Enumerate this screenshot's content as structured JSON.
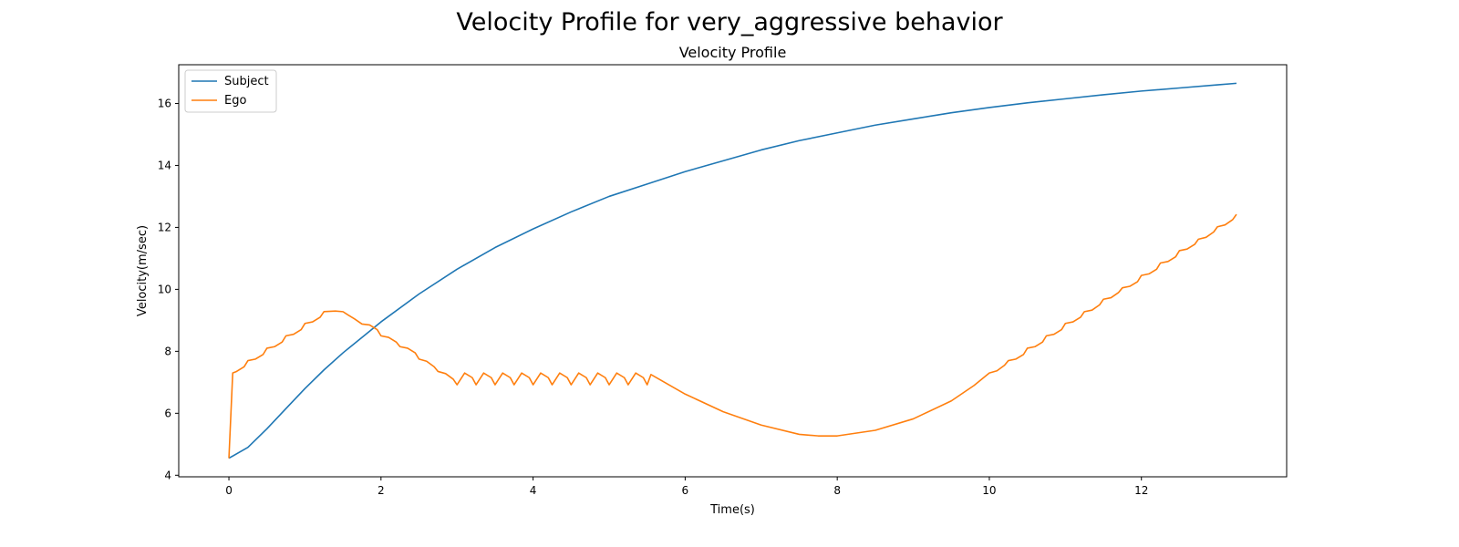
{
  "chart_data": {
    "type": "line",
    "suptitle": "Velocity Profile for very_aggressive behavior",
    "title": "Velocity Profile",
    "xlabel": "Time(s)",
    "ylabel": "Velocity(m/sec)",
    "xlim": [
      -0.66,
      13.91
    ],
    "ylim": [
      3.95,
      17.25
    ],
    "xticks": [
      0,
      2,
      4,
      6,
      8,
      10,
      12
    ],
    "yticks": [
      4,
      6,
      8,
      10,
      12,
      14,
      16
    ],
    "grid": false,
    "legend_position": "upper-left",
    "series": [
      {
        "name": "Subject",
        "color": "#1f77b4",
        "x": [
          0,
          0.25,
          0.5,
          0.75,
          1,
          1.25,
          1.5,
          1.75,
          2,
          2.5,
          3,
          3.5,
          4,
          4.5,
          5,
          5.5,
          6,
          6.5,
          7,
          7.5,
          8,
          8.5,
          9,
          9.5,
          10,
          10.5,
          11,
          11.5,
          12,
          12.5,
          13,
          13.25
        ],
        "y": [
          4.55,
          4.9,
          5.5,
          6.15,
          6.8,
          7.4,
          7.95,
          8.45,
          8.95,
          9.85,
          10.65,
          11.35,
          11.95,
          12.5,
          13.0,
          13.4,
          13.8,
          14.15,
          14.5,
          14.8,
          15.05,
          15.3,
          15.5,
          15.7,
          15.87,
          16.02,
          16.15,
          16.28,
          16.4,
          16.5,
          16.6,
          16.65
        ]
      },
      {
        "name": "Ego",
        "color": "#ff7f0e",
        "x": [
          0,
          0.05,
          0.1,
          0.2,
          0.25,
          0.35,
          0.45,
          0.5,
          0.6,
          0.7,
          0.75,
          0.85,
          0.95,
          1.0,
          1.1,
          1.2,
          1.25,
          1.4,
          1.5,
          1.55,
          1.65,
          1.75,
          1.85,
          1.95,
          2.0,
          2.1,
          2.2,
          2.25,
          2.35,
          2.45,
          2.5,
          2.6,
          2.7,
          2.75,
          2.85,
          2.95,
          3.0,
          3.1,
          3.2,
          3.25,
          3.35,
          3.45,
          3.5,
          3.6,
          3.7,
          3.75,
          3.85,
          3.95,
          4.0,
          4.1,
          4.2,
          4.25,
          4.35,
          4.45,
          4.5,
          4.6,
          4.7,
          4.75,
          4.85,
          4.95,
          5.0,
          5.1,
          5.2,
          5.25,
          5.35,
          5.45,
          5.5,
          5.55,
          6.0,
          6.5,
          7.0,
          7.5,
          7.75,
          8.0,
          8.5,
          9.0,
          9.5,
          9.8,
          10.0,
          10.1,
          10.2,
          10.25,
          10.35,
          10.45,
          10.5,
          10.6,
          10.7,
          10.75,
          10.85,
          10.95,
          11.0,
          11.1,
          11.2,
          11.25,
          11.35,
          11.45,
          11.5,
          11.6,
          11.7,
          11.75,
          11.85,
          11.95,
          12.0,
          12.1,
          12.2,
          12.25,
          12.35,
          12.45,
          12.5,
          12.6,
          12.7,
          12.75,
          12.85,
          12.95,
          13.0,
          13.1,
          13.2,
          13.25
        ],
        "y": [
          4.55,
          7.3,
          7.35,
          7.5,
          7.7,
          7.75,
          7.9,
          8.1,
          8.15,
          8.3,
          8.5,
          8.55,
          8.7,
          8.9,
          8.95,
          9.1,
          9.28,
          9.3,
          9.28,
          9.2,
          9.05,
          8.88,
          8.85,
          8.7,
          8.5,
          8.45,
          8.3,
          8.15,
          8.1,
          7.95,
          7.75,
          7.68,
          7.5,
          7.35,
          7.28,
          7.1,
          6.92,
          7.3,
          7.15,
          6.92,
          7.3,
          7.15,
          6.92,
          7.3,
          7.15,
          6.92,
          7.3,
          7.15,
          6.92,
          7.3,
          7.15,
          6.92,
          7.3,
          7.15,
          6.92,
          7.3,
          7.15,
          6.92,
          7.3,
          7.15,
          6.92,
          7.3,
          7.15,
          6.92,
          7.3,
          7.15,
          6.92,
          7.25,
          6.62,
          6.05,
          5.62,
          5.32,
          5.27,
          5.27,
          5.45,
          5.82,
          6.4,
          6.9,
          7.3,
          7.37,
          7.55,
          7.7,
          7.75,
          7.9,
          8.1,
          8.15,
          8.3,
          8.5,
          8.55,
          8.7,
          8.9,
          8.95,
          9.1,
          9.28,
          9.33,
          9.5,
          9.68,
          9.73,
          9.9,
          10.05,
          10.1,
          10.25,
          10.45,
          10.5,
          10.65,
          10.85,
          10.9,
          11.05,
          11.25,
          11.3,
          11.45,
          11.62,
          11.68,
          11.85,
          12.02,
          12.08,
          12.25,
          12.42
        ]
      }
    ]
  }
}
